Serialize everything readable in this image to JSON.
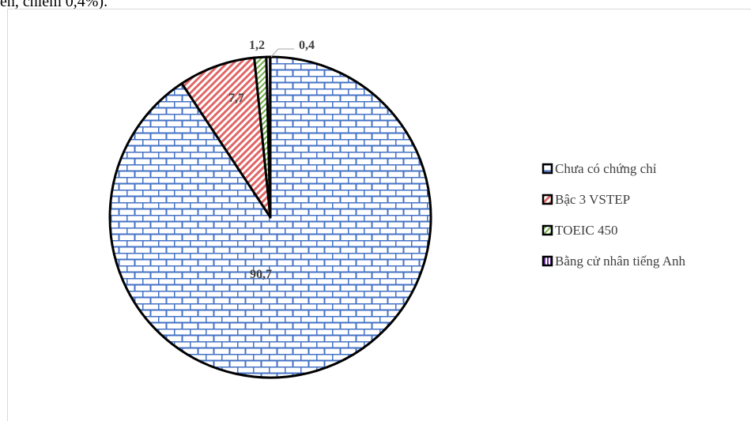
{
  "header_text": "ên, chiếm 0,4%).",
  "chart_data": {
    "type": "pie",
    "title": "",
    "categories": [
      "Chưa có chứng chỉ",
      "Bậc 3 VSTEP",
      "TOEIC 450",
      "Bằng cử nhân tiếng Anh"
    ],
    "values": [
      90.7,
      7.7,
      1.2,
      0.4
    ],
    "data_labels": [
      "90,7",
      "7,7",
      "1,2",
      "0,4"
    ],
    "legend_position": "right",
    "slice_colors": [
      "#4472c4",
      "#e06666",
      "#70ad47",
      "#7030a0"
    ]
  }
}
